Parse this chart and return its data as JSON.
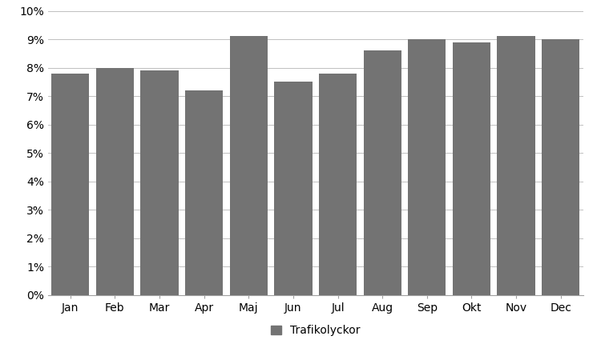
{
  "categories": [
    "Jan",
    "Feb",
    "Mar",
    "Apr",
    "Maj",
    "Jun",
    "Jul",
    "Aug",
    "Sep",
    "Okt",
    "Nov",
    "Dec"
  ],
  "values": [
    0.078,
    0.08,
    0.079,
    0.072,
    0.091,
    0.075,
    0.078,
    0.086,
    0.09,
    0.089,
    0.091,
    0.09
  ],
  "bar_color": "#737373",
  "legend_label": "Trafikolyckor",
  "ylim": [
    0,
    0.1
  ],
  "yticks": [
    0.0,
    0.01,
    0.02,
    0.03,
    0.04,
    0.05,
    0.06,
    0.07,
    0.08,
    0.09,
    0.1
  ],
  "background_color": "#ffffff",
  "grid_color": "#c0c0c0",
  "legend_square_color": "#737373",
  "bar_width": 0.85,
  "tick_fontsize": 10,
  "legend_fontsize": 10
}
